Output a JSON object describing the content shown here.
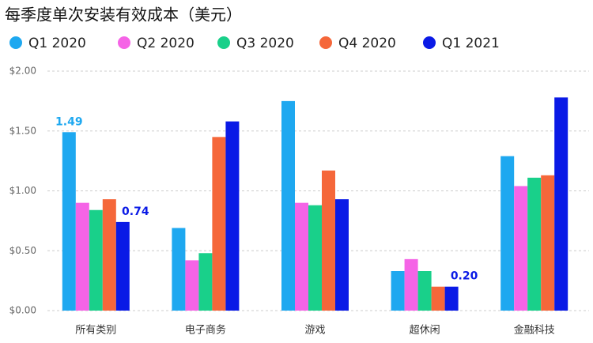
{
  "chart_data": {
    "type": "bar",
    "title": "每季度单次安装有效成本（美元）",
    "categories": [
      "所有类别",
      "电子商务",
      "游戏",
      "超休闲",
      "金融科技"
    ],
    "series": [
      {
        "name": "Q1 2020",
        "color": "#1ea8f0",
        "values": [
          1.49,
          0.69,
          1.75,
          0.33,
          1.29
        ],
        "value_labels": [
          "1.49",
          null,
          null,
          null,
          null
        ]
      },
      {
        "name": "Q2 2020",
        "color": "#f564e6",
        "values": [
          0.9,
          0.42,
          0.9,
          0.43,
          1.04
        ]
      },
      {
        "name": "Q3 2020",
        "color": "#19d08a",
        "values": [
          0.84,
          0.48,
          0.88,
          0.33,
          1.11
        ]
      },
      {
        "name": "Q4 2020",
        "color": "#f5673a",
        "values": [
          0.93,
          1.45,
          1.17,
          0.2,
          1.13
        ]
      },
      {
        "name": "Q1 2021",
        "color": "#0a1ae6",
        "values": [
          0.74,
          1.58,
          0.93,
          0.2,
          1.78
        ],
        "value_labels": [
          "0.74",
          null,
          null,
          "0.20",
          null
        ]
      }
    ],
    "ylim": [
      0,
      2
    ],
    "yticks": [
      {
        "value": 0,
        "label": "$0.00"
      },
      {
        "value": 0.5,
        "label": "$0.50"
      },
      {
        "value": 1,
        "label": "$1.00"
      },
      {
        "value": 1.5,
        "label": "$1.50"
      },
      {
        "value": 2,
        "label": "$2.00"
      }
    ],
    "grid": true
  }
}
